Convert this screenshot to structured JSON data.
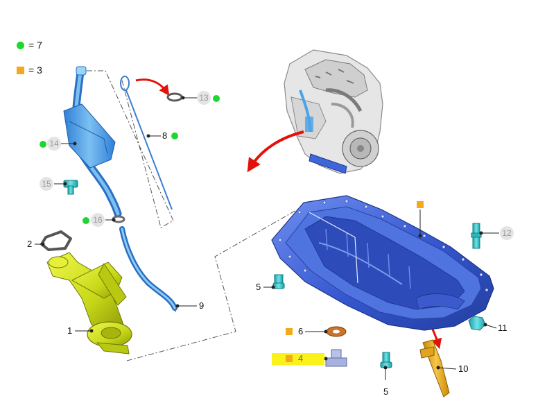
{
  "legend": [
    {
      "marker": "green-dot",
      "color": "#1fd631",
      "text": "= 7"
    },
    {
      "marker": "orange-square",
      "color": "#f4a91c",
      "text": "= 3"
    }
  ],
  "callouts": [
    {
      "label": "1"
    },
    {
      "label": "2"
    },
    {
      "label": "4"
    },
    {
      "label": "5"
    },
    {
      "label": "5"
    },
    {
      "label": "6"
    },
    {
      "label": "8"
    },
    {
      "label": "9"
    },
    {
      "label": "10"
    },
    {
      "label": "11"
    },
    {
      "label": "12"
    },
    {
      "label": "13"
    },
    {
      "label": "14"
    },
    {
      "label": "15"
    },
    {
      "label": "16"
    }
  ],
  "colors": {
    "part_blue": "#3f66d8",
    "part_light_blue": "#4ba3e8",
    "part_yellow": "#d7e81f",
    "marker_green": "#1fd631",
    "marker_orange": "#f4a91c",
    "highlight_yellow": "#fbf21a",
    "arrow_red": "#e3120b"
  },
  "icons": [
    "engine-illustration",
    "oil-pan-illustration",
    "oil-pump-pickup-illustration",
    "dipstick-tube-illustration"
  ]
}
